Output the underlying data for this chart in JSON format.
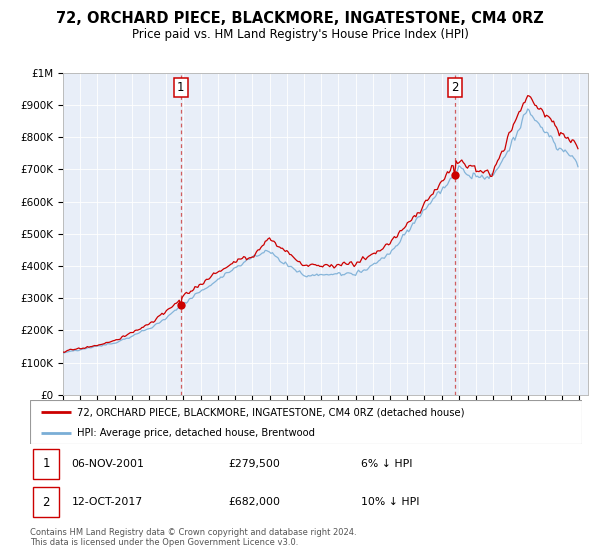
{
  "title": "72, ORCHARD PIECE, BLACKMORE, INGATESTONE, CM4 0RZ",
  "subtitle": "Price paid vs. HM Land Registry's House Price Index (HPI)",
  "ylim": [
    0,
    1000000
  ],
  "yticks": [
    0,
    100000,
    200000,
    300000,
    400000,
    500000,
    600000,
    700000,
    800000,
    900000,
    1000000
  ],
  "ytick_labels": [
    "£0",
    "£100K",
    "£200K",
    "£300K",
    "£400K",
    "£500K",
    "£600K",
    "£700K",
    "£800K",
    "£900K",
    "£1M"
  ],
  "xlim_start": 1995.0,
  "xlim_end": 2025.5,
  "sale1_date": 2001.85,
  "sale1_price": 279500,
  "sale2_date": 2017.78,
  "sale2_price": 682000,
  "line_color_property": "#cc0000",
  "line_color_hpi": "#7aaed6",
  "bg_color": "#e8eef8",
  "legend_label_property": "72, ORCHARD PIECE, BLACKMORE, INGATESTONE, CM4 0RZ (detached house)",
  "legend_label_hpi": "HPI: Average price, detached house, Brentwood",
  "sale1_text": "06-NOV-2001",
  "sale1_price_text": "£279,500",
  "sale1_hpi_text": "6% ↓ HPI",
  "sale2_text": "12-OCT-2017",
  "sale2_price_text": "£682,000",
  "sale2_hpi_text": "10% ↓ HPI",
  "footer1": "Contains HM Land Registry data © Crown copyright and database right 2024.",
  "footer2": "This data is licensed under the Open Government Licence v3.0."
}
